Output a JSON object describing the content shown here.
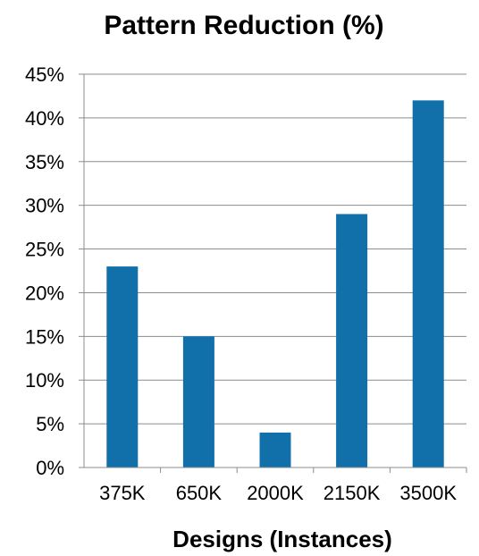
{
  "chart_data": {
    "type": "bar",
    "title": "Pattern Reduction (%)",
    "xlabel": "Designs (Instances)",
    "ylabel": "",
    "categories": [
      "375K",
      "650K",
      "2000K",
      "2150K",
      "3500K"
    ],
    "values": [
      23,
      15,
      4,
      29,
      42
    ],
    "ylim": [
      0,
      45
    ],
    "yticks": [
      "0%",
      "5%",
      "10%",
      "15%",
      "20%",
      "25%",
      "30%",
      "35%",
      "40%",
      "45%"
    ],
    "grid": true,
    "legend": "none",
    "bar_color": "#1170AA"
  }
}
